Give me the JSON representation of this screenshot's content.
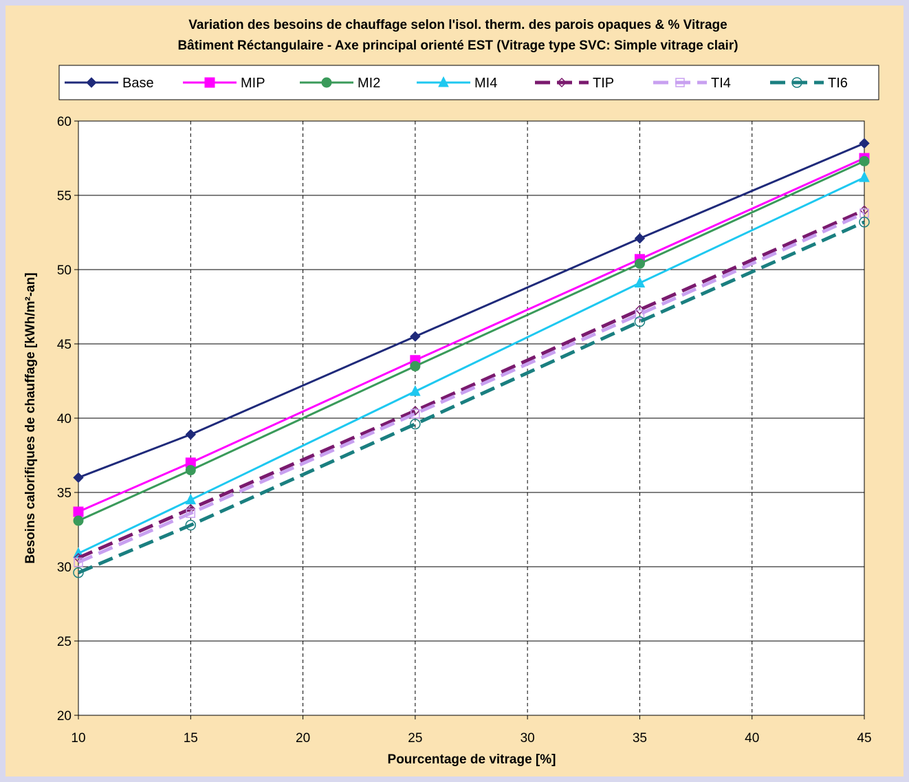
{
  "chart_data": {
    "type": "line",
    "title": "Variation des besoins de chauffage selon l'isol. therm. des parois opaques & % Vitrage",
    "subtitle": "Bâtiment Réctangulaire - Axe principal orienté EST (Vitrage type SVC: Simple vitrage clair)",
    "xlabel": "Pourcentage de vitrage [%]",
    "ylabel": "Besoins calorifiques de chauffage [kWh/m²-an]",
    "xlim": [
      10,
      45
    ],
    "ylim": [
      20,
      60
    ],
    "x_ticks": [
      "10",
      "15",
      "20",
      "25",
      "30",
      "35",
      "40",
      "45"
    ],
    "y_ticks": [
      "20",
      "25",
      "30",
      "35",
      "40",
      "45",
      "50",
      "55",
      "60"
    ],
    "grid": true,
    "legend_position": "top",
    "x": [
      10,
      15,
      25,
      35,
      45
    ],
    "series": [
      {
        "name": "Base",
        "values": [
          36.0,
          38.9,
          45.5,
          52.1,
          58.5
        ],
        "color": "#1f2a7a",
        "marker": "diamond",
        "dash": false
      },
      {
        "name": "MIP",
        "values": [
          33.7,
          37.0,
          43.9,
          50.7,
          57.5
        ],
        "color": "#ff00ff",
        "marker": "square",
        "dash": false
      },
      {
        "name": "MI2",
        "values": [
          33.1,
          36.5,
          43.5,
          50.4,
          57.3
        ],
        "color": "#3a9a5a",
        "marker": "circle",
        "dash": false
      },
      {
        "name": "MI4",
        "values": [
          30.9,
          34.5,
          41.8,
          49.1,
          56.2
        ],
        "color": "#1ec8f0",
        "marker": "triangle",
        "dash": false
      },
      {
        "name": "TIP",
        "values": [
          30.6,
          33.9,
          40.5,
          47.3,
          54.0
        ],
        "color": "#7a1a6e",
        "marker": "diamond-open",
        "dash": true
      },
      {
        "name": "TI4",
        "values": [
          30.3,
          33.6,
          40.3,
          47.0,
          53.8
        ],
        "color": "#c8a0f0",
        "marker": "square-open",
        "dash": true
      },
      {
        "name": "TI6",
        "values": [
          29.6,
          32.8,
          39.6,
          46.5,
          53.2
        ],
        "color": "#1a7f80",
        "marker": "circle-open",
        "dash": true
      }
    ]
  }
}
